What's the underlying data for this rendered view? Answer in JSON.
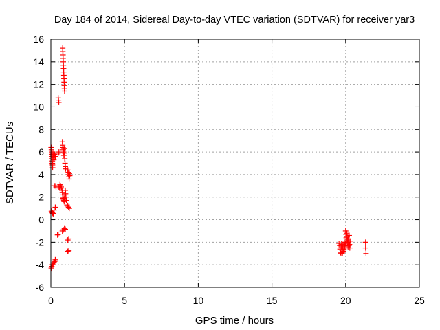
{
  "chart_data": {
    "type": "scatter",
    "title": "Day 184 of 2014, Sidereal Day-to-day VTEC variation (SDTVAR) for receiver yar3",
    "xlabel": "GPS time / hours",
    "ylabel": "SDTVAR / TECUs",
    "xlim": [
      0,
      25
    ],
    "ylim": [
      -6,
      16
    ],
    "xticks": [
      "0",
      "5",
      "10",
      "15",
      "20",
      "25"
    ],
    "yticks": [
      "-6",
      "-4",
      "-2",
      "0",
      "2",
      "4",
      "6",
      "8",
      "10",
      "12",
      "14",
      "16"
    ],
    "grid": true,
    "marker": "+",
    "series": [
      {
        "name": "SDTVAR",
        "color": "#ff0000",
        "points": [
          [
            0.03,
            -4.3
          ],
          [
            0.06,
            -4.15
          ],
          [
            0.1,
            -4.0
          ],
          [
            0.14,
            -4.0
          ],
          [
            0.18,
            -3.85
          ],
          [
            0.22,
            -3.8
          ],
          [
            0.26,
            -3.7
          ],
          [
            0.3,
            -3.55
          ],
          [
            0.04,
            0.75
          ],
          [
            0.1,
            0.6
          ],
          [
            0.14,
            0.55
          ],
          [
            0.18,
            0.5
          ],
          [
            0.22,
            0.85
          ],
          [
            0.3,
            1.1
          ],
          [
            0.02,
            6.4
          ],
          [
            0.04,
            6.2
          ],
          [
            0.05,
            6.0
          ],
          [
            0.06,
            5.8
          ],
          [
            0.08,
            5.6
          ],
          [
            0.09,
            5.4
          ],
          [
            0.1,
            5.2
          ],
          [
            0.1,
            5.0
          ],
          [
            0.11,
            4.85
          ],
          [
            0.12,
            4.6
          ],
          [
            0.14,
            5.9
          ],
          [
            0.15,
            5.7
          ],
          [
            0.18,
            5.5
          ],
          [
            0.2,
            5.3
          ],
          [
            0.22,
            5.6
          ],
          [
            0.26,
            5.8
          ],
          [
            0.3,
            5.6
          ],
          [
            0.22,
            3.0
          ],
          [
            0.28,
            3.0
          ],
          [
            0.35,
            2.9
          ],
          [
            0.5,
            5.9
          ],
          [
            0.55,
            6.0
          ],
          [
            0.5,
            10.8
          ],
          [
            0.52,
            10.6
          ],
          [
            0.54,
            10.4
          ],
          [
            0.45,
            -1.35
          ],
          [
            0.5,
            -1.3
          ],
          [
            0.55,
            2.9
          ],
          [
            0.6,
            2.8
          ],
          [
            0.62,
            3.1
          ],
          [
            0.66,
            3.0
          ],
          [
            0.7,
            2.9
          ],
          [
            0.72,
            2.8
          ],
          [
            0.76,
            2.6
          ],
          [
            0.78,
            2.4
          ],
          [
            0.8,
            2.2
          ],
          [
            0.82,
            2.0
          ],
          [
            0.84,
            1.9
          ],
          [
            0.86,
            1.8
          ],
          [
            0.88,
            1.7
          ],
          [
            0.9,
            1.6
          ],
          [
            0.92,
            1.9
          ],
          [
            0.95,
            2.2
          ],
          [
            0.98,
            2.6
          ],
          [
            1.0,
            2.3
          ],
          [
            1.02,
            2.0
          ],
          [
            1.05,
            1.7
          ],
          [
            0.78,
            6.9
          ],
          [
            0.8,
            6.6
          ],
          [
            0.82,
            6.4
          ],
          [
            0.84,
            6.2
          ],
          [
            0.86,
            6.0
          ],
          [
            0.88,
            5.7
          ],
          [
            0.9,
            6.3
          ],
          [
            0.92,
            5.9
          ],
          [
            0.94,
            5.4
          ],
          [
            0.96,
            5.0
          ],
          [
            0.98,
            4.7
          ],
          [
            1.0,
            4.5
          ],
          [
            0.8,
            15.2
          ],
          [
            0.81,
            14.9
          ],
          [
            0.82,
            14.6
          ],
          [
            0.83,
            14.3
          ],
          [
            0.84,
            14.0
          ],
          [
            0.85,
            13.7
          ],
          [
            0.86,
            13.4
          ],
          [
            0.87,
            13.1
          ],
          [
            0.88,
            12.8
          ],
          [
            0.89,
            12.5
          ],
          [
            0.9,
            12.2
          ],
          [
            0.91,
            11.9
          ],
          [
            0.92,
            11.6
          ],
          [
            0.93,
            11.4
          ],
          [
            0.78,
            -1.0
          ],
          [
            0.85,
            -0.9
          ],
          [
            0.92,
            -0.8
          ],
          [
            0.98,
            -0.85
          ],
          [
            1.15,
            4.4
          ],
          [
            1.18,
            4.2
          ],
          [
            1.2,
            4.0
          ],
          [
            1.22,
            3.8
          ],
          [
            1.24,
            3.6
          ],
          [
            1.26,
            4.1
          ],
          [
            1.28,
            3.9
          ],
          [
            1.1,
            1.3
          ],
          [
            1.15,
            1.2
          ],
          [
            1.2,
            1.1
          ],
          [
            1.25,
            1.0
          ],
          [
            1.15,
            -1.8
          ],
          [
            1.22,
            -1.7
          ],
          [
            1.15,
            -2.8
          ],
          [
            1.22,
            -2.75
          ],
          [
            19.55,
            -2.1
          ],
          [
            19.6,
            -2.3
          ],
          [
            19.62,
            -2.6
          ],
          [
            19.65,
            -2.9
          ],
          [
            19.68,
            -3.0
          ],
          [
            19.7,
            -2.4
          ],
          [
            19.72,
            -2.1
          ],
          [
            19.75,
            -2.7
          ],
          [
            19.78,
            -2.95
          ],
          [
            19.8,
            -2.5
          ],
          [
            19.82,
            -2.2
          ],
          [
            19.85,
            -2.8
          ],
          [
            19.88,
            -2.6
          ],
          [
            19.9,
            -2.0
          ],
          [
            19.93,
            -2.3
          ],
          [
            19.95,
            -2.5
          ],
          [
            19.98,
            -2.1
          ],
          [
            20.0,
            -1.0
          ],
          [
            20.02,
            -1.3
          ],
          [
            20.04,
            -1.6
          ],
          [
            20.06,
            -1.9
          ],
          [
            20.08,
            -1.2
          ],
          [
            20.1,
            -1.5
          ],
          [
            20.12,
            -1.8
          ],
          [
            20.14,
            -2.1
          ],
          [
            20.16,
            -2.4
          ],
          [
            20.18,
            -1.7
          ],
          [
            20.2,
            -2.0
          ],
          [
            20.22,
            -2.3
          ],
          [
            20.24,
            -1.4
          ],
          [
            20.26,
            -2.2
          ],
          [
            20.28,
            -2.5
          ],
          [
            20.3,
            -1.9
          ],
          [
            21.35,
            -2.0
          ],
          [
            21.35,
            -2.5
          ],
          [
            21.38,
            -3.0
          ]
        ]
      }
    ]
  }
}
